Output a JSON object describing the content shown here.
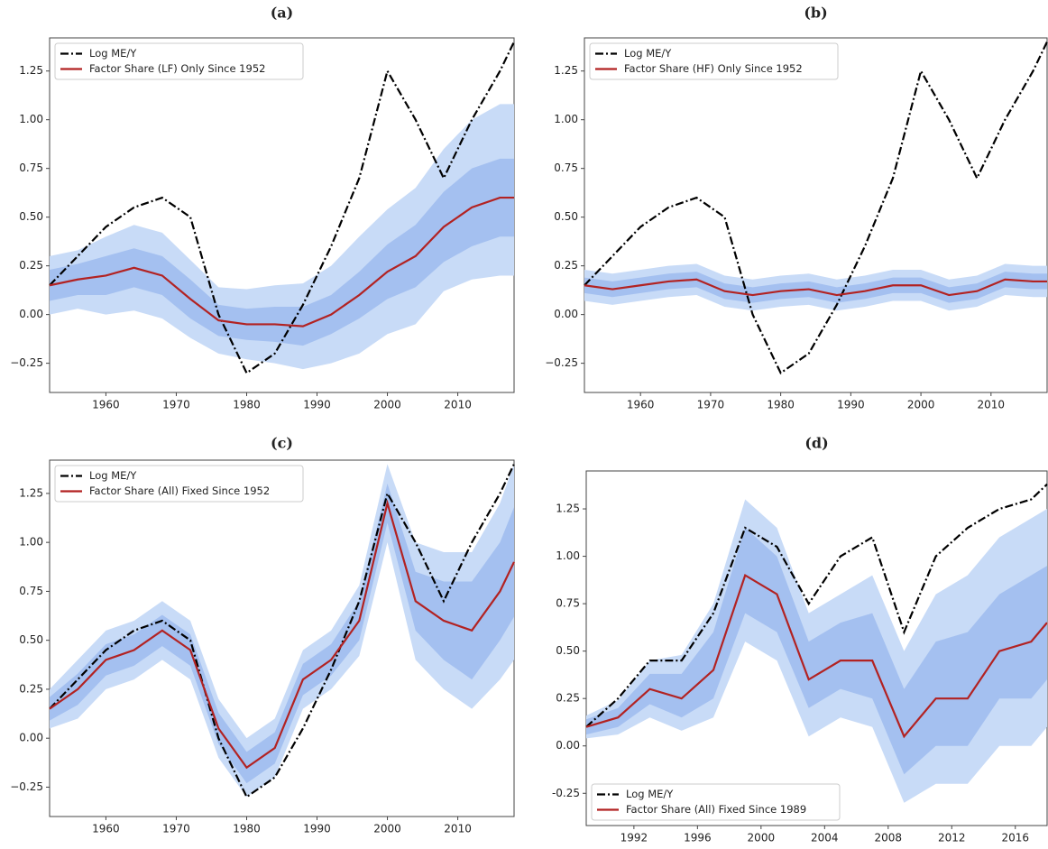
{
  "chart_data": [
    {
      "type": "line",
      "title": "(a)",
      "legend": "upper left",
      "x": [
        1952,
        1956,
        1960,
        1964,
        1968,
        1972,
        1976,
        1980,
        1984,
        1988,
        1992,
        1996,
        2000,
        2004,
        2008,
        2012,
        2016,
        2018
      ],
      "xlim": [
        1952,
        2018
      ],
      "xticks": [
        1960,
        1970,
        1980,
        1990,
        2000,
        2010
      ],
      "ylim": [
        -0.4,
        1.42
      ],
      "yticks": [
        {
          "value": -0.25,
          "label": "−0.25"
        },
        {
          "value": 0,
          "label": "0.00"
        },
        {
          "value": 0.25,
          "label": "0.25"
        },
        {
          "value": 0.5,
          "label": "0.50"
        },
        {
          "value": 0.75,
          "label": "0.75"
        },
        {
          "value": 1,
          "label": "1.00"
        },
        {
          "value": 1.25,
          "label": "1.25"
        }
      ],
      "bands": [
        {
          "color": "#c8dbf7",
          "lower": [
            0.0,
            0.03,
            0.0,
            0.02,
            -0.02,
            -0.12,
            -0.2,
            -0.23,
            -0.25,
            -0.28,
            -0.25,
            -0.2,
            -0.1,
            -0.05,
            0.12,
            0.18,
            0.2,
            0.2
          ],
          "upper": [
            0.3,
            0.33,
            0.4,
            0.46,
            0.42,
            0.28,
            0.14,
            0.13,
            0.15,
            0.16,
            0.25,
            0.4,
            0.54,
            0.65,
            0.85,
            1.0,
            1.08,
            1.08
          ]
        },
        {
          "color": "#a4c0f0",
          "lower": [
            0.07,
            0.1,
            0.1,
            0.14,
            0.1,
            -0.02,
            -0.11,
            -0.13,
            -0.14,
            -0.16,
            -0.1,
            -0.02,
            0.08,
            0.14,
            0.27,
            0.35,
            0.4,
            0.4
          ],
          "upper": [
            0.23,
            0.26,
            0.3,
            0.34,
            0.3,
            0.18,
            0.05,
            0.03,
            0.04,
            0.04,
            0.1,
            0.22,
            0.36,
            0.46,
            0.63,
            0.75,
            0.8,
            0.8
          ]
        }
      ],
      "series": [
        {
          "name": "Log ME/Y",
          "color": "#000000",
          "style": "dashdot",
          "values": [
            0.15,
            0.3,
            0.45,
            0.55,
            0.6,
            0.5,
            0.0,
            -0.3,
            -0.2,
            0.05,
            0.35,
            0.7,
            1.25,
            1.0,
            0.7,
            1.0,
            1.25,
            1.4
          ]
        },
        {
          "name": "Factor Share (LF) Only Since 1952",
          "color": "#b22222",
          "style": "solid",
          "values": [
            0.15,
            0.18,
            0.2,
            0.24,
            0.2,
            0.08,
            -0.03,
            -0.05,
            -0.05,
            -0.06,
            0.0,
            0.1,
            0.22,
            0.3,
            0.45,
            0.55,
            0.6,
            0.6
          ]
        }
      ]
    },
    {
      "type": "line",
      "title": "(b)",
      "legend": "upper left",
      "x": [
        1952,
        1956,
        1960,
        1964,
        1968,
        1972,
        1976,
        1980,
        1984,
        1988,
        1992,
        1996,
        2000,
        2004,
        2008,
        2012,
        2016,
        2018
      ],
      "xlim": [
        1952,
        2018
      ],
      "xticks": [
        1960,
        1970,
        1980,
        1990,
        2000,
        2010
      ],
      "ylim": [
        -0.4,
        1.42
      ],
      "yticks": [
        {
          "value": -0.25,
          "label": "−0.25"
        },
        {
          "value": 0,
          "label": "0.00"
        },
        {
          "value": 0.25,
          "label": "0.25"
        },
        {
          "value": 0.5,
          "label": "0.50"
        },
        {
          "value": 0.75,
          "label": "0.75"
        },
        {
          "value": 1,
          "label": "1.00"
        },
        {
          "value": 1.25,
          "label": "1.25"
        }
      ],
      "bands": [
        {
          "color": "#c8dbf7",
          "lower": [
            0.07,
            0.05,
            0.07,
            0.09,
            0.1,
            0.04,
            0.02,
            0.04,
            0.05,
            0.02,
            0.04,
            0.07,
            0.07,
            0.02,
            0.04,
            0.1,
            0.09,
            0.09
          ],
          "upper": [
            0.23,
            0.21,
            0.23,
            0.25,
            0.26,
            0.2,
            0.18,
            0.2,
            0.21,
            0.18,
            0.2,
            0.23,
            0.23,
            0.18,
            0.2,
            0.26,
            0.25,
            0.25
          ]
        },
        {
          "color": "#a4c0f0",
          "lower": [
            0.11,
            0.09,
            0.11,
            0.13,
            0.14,
            0.08,
            0.06,
            0.08,
            0.09,
            0.06,
            0.08,
            0.11,
            0.11,
            0.06,
            0.08,
            0.14,
            0.13,
            0.13
          ],
          "upper": [
            0.19,
            0.17,
            0.19,
            0.21,
            0.22,
            0.16,
            0.14,
            0.16,
            0.17,
            0.14,
            0.16,
            0.19,
            0.19,
            0.14,
            0.16,
            0.22,
            0.21,
            0.21
          ]
        }
      ],
      "series": [
        {
          "name": "Log ME/Y",
          "color": "#000000",
          "style": "dashdot",
          "values": [
            0.15,
            0.3,
            0.45,
            0.55,
            0.6,
            0.5,
            0.0,
            -0.3,
            -0.2,
            0.05,
            0.35,
            0.7,
            1.25,
            1.0,
            0.7,
            1.0,
            1.25,
            1.4
          ]
        },
        {
          "name": "Factor Share (HF) Only Since 1952",
          "color": "#b22222",
          "style": "solid",
          "values": [
            0.15,
            0.13,
            0.15,
            0.17,
            0.18,
            0.12,
            0.1,
            0.12,
            0.13,
            0.1,
            0.12,
            0.15,
            0.15,
            0.1,
            0.12,
            0.18,
            0.17,
            0.17
          ]
        }
      ]
    },
    {
      "type": "line",
      "title": "(c)",
      "legend": "upper left",
      "x": [
        1952,
        1956,
        1960,
        1964,
        1968,
        1972,
        1976,
        1980,
        1984,
        1988,
        1992,
        1996,
        2000,
        2004,
        2008,
        2012,
        2016,
        2018
      ],
      "xlim": [
        1952,
        2018
      ],
      "xticks": [
        1960,
        1970,
        1980,
        1990,
        2000,
        2010
      ],
      "ylim": [
        -0.4,
        1.42
      ],
      "yticks": [
        {
          "value": -0.25,
          "label": "−0.25"
        },
        {
          "value": 0,
          "label": "0.00"
        },
        {
          "value": 0.25,
          "label": "0.25"
        },
        {
          "value": 0.5,
          "label": "0.50"
        },
        {
          "value": 0.75,
          "label": "0.75"
        },
        {
          "value": 1,
          "label": "1.00"
        },
        {
          "value": 1.25,
          "label": "1.25"
        }
      ],
      "bands": [
        {
          "color": "#c8dbf7",
          "lower": [
            0.05,
            0.1,
            0.25,
            0.3,
            0.4,
            0.3,
            -0.1,
            -0.3,
            -0.2,
            0.15,
            0.25,
            0.42,
            1.0,
            0.4,
            0.25,
            0.15,
            0.3,
            0.4
          ],
          "upper": [
            0.25,
            0.4,
            0.55,
            0.6,
            0.7,
            0.6,
            0.2,
            0.0,
            0.1,
            0.45,
            0.55,
            0.78,
            1.4,
            1.0,
            0.95,
            0.95,
            1.2,
            1.4
          ]
        },
        {
          "color": "#a4c0f0",
          "lower": [
            0.09,
            0.17,
            0.32,
            0.37,
            0.47,
            0.37,
            -0.03,
            -0.23,
            -0.13,
            0.22,
            0.32,
            0.5,
            1.1,
            0.55,
            0.4,
            0.3,
            0.5,
            0.62
          ],
          "upper": [
            0.21,
            0.33,
            0.48,
            0.53,
            0.63,
            0.53,
            0.13,
            -0.07,
            0.03,
            0.38,
            0.48,
            0.7,
            1.3,
            0.85,
            0.8,
            0.8,
            1.0,
            1.18
          ]
        }
      ],
      "series": [
        {
          "name": "Log ME/Y",
          "color": "#000000",
          "style": "dashdot",
          "values": [
            0.15,
            0.3,
            0.45,
            0.55,
            0.6,
            0.5,
            0.0,
            -0.3,
            -0.2,
            0.05,
            0.35,
            0.7,
            1.25,
            1.0,
            0.7,
            1.0,
            1.25,
            1.4
          ]
        },
        {
          "name": "Factor Share (All) Fixed Since 1952",
          "color": "#b22222",
          "style": "solid",
          "values": [
            0.15,
            0.25,
            0.4,
            0.45,
            0.55,
            0.45,
            0.05,
            -0.15,
            -0.05,
            0.3,
            0.4,
            0.6,
            1.2,
            0.7,
            0.6,
            0.55,
            0.75,
            0.9
          ]
        }
      ]
    },
    {
      "type": "line",
      "title": "(d)",
      "legend": "lower left",
      "x": [
        1989,
        1991,
        1993,
        1995,
        1997,
        1999,
        2001,
        2003,
        2005,
        2007,
        2009,
        2011,
        2013,
        2015,
        2017,
        2018
      ],
      "xlim": [
        1989,
        2018
      ],
      "xticks": [
        1992,
        1996,
        2000,
        2004,
        2008,
        2012,
        2016
      ],
      "ylim": [
        -0.42,
        1.45
      ],
      "yticks": [
        {
          "value": -0.25,
          "label": "-0.25"
        },
        {
          "value": 0,
          "label": "0.00"
        },
        {
          "value": 0.25,
          "label": "0.25"
        },
        {
          "value": 0.5,
          "label": "0.50"
        },
        {
          "value": 0.75,
          "label": "0.75"
        },
        {
          "value": 1,
          "label": "1.00"
        },
        {
          "value": 1.25,
          "label": "1.25"
        }
      ],
      "bands": [
        {
          "color": "#c8dbf7",
          "lower": [
            0.04,
            0.06,
            0.15,
            0.08,
            0.15,
            0.55,
            0.45,
            0.05,
            0.15,
            0.1,
            -0.3,
            -0.2,
            -0.2,
            0.0,
            0.0,
            0.1
          ],
          "upper": [
            0.16,
            0.24,
            0.45,
            0.48,
            0.75,
            1.3,
            1.15,
            0.7,
            0.8,
            0.9,
            0.5,
            0.8,
            0.9,
            1.1,
            1.2,
            1.25
          ]
        },
        {
          "color": "#a4c0f0",
          "lower": [
            0.06,
            0.1,
            0.22,
            0.15,
            0.25,
            0.7,
            0.6,
            0.2,
            0.3,
            0.25,
            -0.15,
            0.0,
            0.0,
            0.25,
            0.25,
            0.35
          ],
          "upper": [
            0.14,
            0.2,
            0.38,
            0.38,
            0.6,
            1.15,
            1.0,
            0.55,
            0.65,
            0.7,
            0.3,
            0.55,
            0.6,
            0.8,
            0.9,
            0.95
          ]
        }
      ],
      "series": [
        {
          "name": "Log ME/Y",
          "color": "#000000",
          "style": "dashdot",
          "values": [
            0.1,
            0.25,
            0.45,
            0.45,
            0.7,
            1.15,
            1.05,
            0.75,
            1.0,
            1.1,
            0.6,
            1.0,
            1.15,
            1.25,
            1.3,
            1.38
          ]
        },
        {
          "name": "Factor Share (All) Fixed Since 1989",
          "color": "#b22222",
          "style": "solid",
          "values": [
            0.1,
            0.15,
            0.3,
            0.25,
            0.4,
            0.9,
            0.8,
            0.35,
            0.45,
            0.45,
            0.05,
            0.25,
            0.25,
            0.5,
            0.55,
            0.65
          ]
        }
      ]
    }
  ]
}
